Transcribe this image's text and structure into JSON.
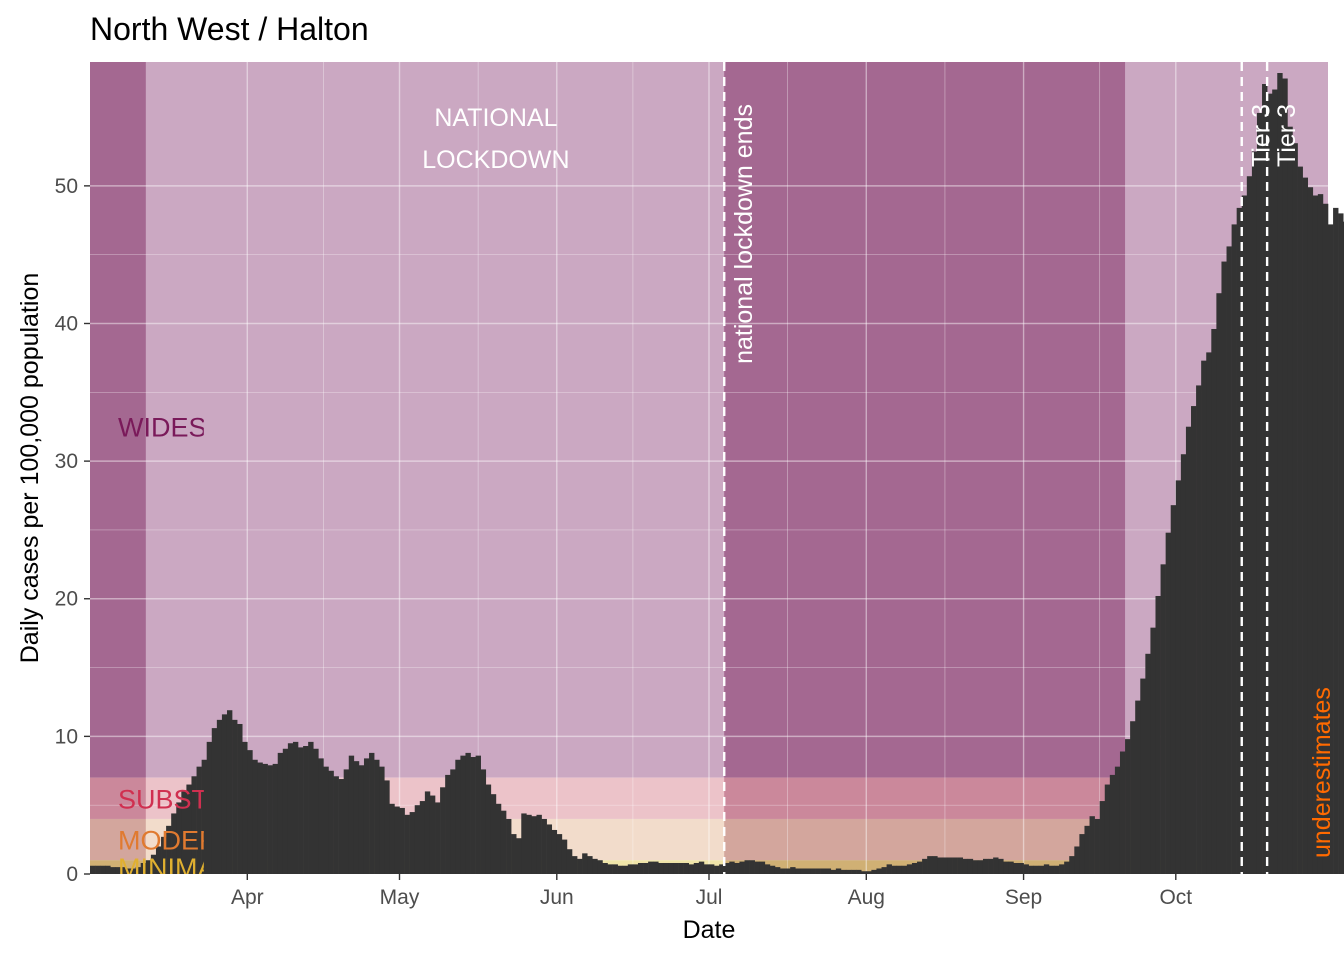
{
  "chart_data": {
    "type": "bar",
    "title": "North West / Halton",
    "xlabel": "Date",
    "ylabel": "Daily cases per 100,000 population",
    "ylim": [
      0,
      59
    ],
    "yticks": [
      0,
      10,
      20,
      30,
      40,
      50
    ],
    "ytick_labels": [
      "0",
      "10",
      "20",
      "30",
      "40",
      "50"
    ],
    "xlim": [
      "2020-03-01",
      "2020-10-31"
    ],
    "x_ticks": [
      {
        "date": "2020-04-01",
        "label": "Apr"
      },
      {
        "date": "2020-05-01",
        "label": "May"
      },
      {
        "date": "2020-06-01",
        "label": "Jun"
      },
      {
        "date": "2020-07-01",
        "label": "Jul"
      },
      {
        "date": "2020-08-01",
        "label": "Aug"
      },
      {
        "date": "2020-09-01",
        "label": "Sep"
      },
      {
        "date": "2020-10-01",
        "label": "Oct"
      }
    ],
    "grid": true,
    "levels": [
      {
        "label": "WIDESPREAD",
        "from": 7,
        "to": 59,
        "color": "#b07aa1",
        "text_color": "#7a1a5a"
      },
      {
        "label": "SUBSTANTIAL",
        "from": 4,
        "to": 7,
        "color": "#e2a3ad",
        "text_color": "#d03050"
      },
      {
        "label": "MODERATE",
        "from": 1,
        "to": 4,
        "color": "#ecc9b0",
        "text_color": "#e07a30"
      },
      {
        "label": "MINIMAL",
        "from": 0,
        "to": 1,
        "color": "#e8d77c",
        "text_color": "#e0b030"
      }
    ],
    "periods": [
      {
        "from": "2020-03-01",
        "to": "2020-03-12",
        "kind": "unrestricted"
      },
      {
        "from": "2020-03-12",
        "to": "2020-07-04",
        "kind": "lockdown"
      },
      {
        "from": "2020-07-04",
        "to": "2020-09-21",
        "kind": "unrestricted"
      },
      {
        "from": "2020-09-21",
        "to": "2020-10-31",
        "kind": "restricted"
      }
    ],
    "period_fill": {
      "unrestricted": "#7a2a5a",
      "lockdown": "#ffffff",
      "restricted": "#ffffff"
    },
    "annotations": [
      {
        "lines": [
          "NATIONAL",
          "LOCKDOWN"
        ],
        "date": "2020-05-20",
        "y": 54.5
      },
      {
        "text": "national lockdown ends",
        "date": "2020-07-04",
        "vertical": true
      },
      {
        "text": "Tier 3",
        "date": "2020-10-14",
        "vertical": true
      },
      {
        "text": "Tier 3",
        "date": "2020-10-19",
        "vertical": true
      },
      {
        "text": "underestimates",
        "date": "2020-10-29",
        "vertical": true,
        "color": "#ff6a00"
      }
    ],
    "bar_color": "#333333",
    "series": [
      {
        "start_date": "2020-03-01",
        "values": [
          0.6,
          0.6,
          0.6,
          0.6,
          0.5,
          0.5,
          0.5,
          0.4,
          0.4,
          0.5,
          0.8,
          1.0,
          1.4,
          2.0,
          2.7,
          3.5,
          4.4,
          5.2,
          6.0,
          6.5,
          7.1,
          7.8,
          8.3,
          9.6,
          10.6,
          11.2,
          11.6,
          11.9,
          11.2,
          10.9,
          9.6,
          9.0,
          8.3,
          8.1,
          8.0,
          7.9,
          8.0,
          8.8,
          9.1,
          9.5,
          9.6,
          9.2,
          9.3,
          9.6,
          9.1,
          8.4,
          7.8,
          7.5,
          7.1,
          6.9,
          7.6,
          8.6,
          8.2,
          7.9,
          8.4,
          8.8,
          8.3,
          7.8,
          6.8,
          5.1,
          4.9,
          4.8,
          4.3,
          4.5,
          5.0,
          5.3,
          6.0,
          5.7,
          5.2,
          6.3,
          7.2,
          7.6,
          8.3,
          8.6,
          8.8,
          8.5,
          8.6,
          7.6,
          6.5,
          5.8,
          5.1,
          4.6,
          4.0,
          2.9,
          2.6,
          4.4,
          4.3,
          4.2,
          4.3,
          4.0,
          3.6,
          3.2,
          2.9,
          2.5,
          1.8,
          1.3,
          1.1,
          1.5,
          1.3,
          1.1,
          1.0,
          0.8,
          0.7,
          0.7,
          0.6,
          0.6,
          0.7,
          0.7,
          0.8,
          0.8,
          0.9,
          0.9,
          0.8,
          0.8,
          0.8,
          0.8,
          0.8,
          0.8,
          0.7,
          0.8,
          0.9,
          0.7,
          0.7,
          0.6,
          0.7,
          0.8,
          0.9,
          0.8,
          0.9,
          1.0,
          1.0,
          0.9,
          0.9,
          0.7,
          0.6,
          0.5,
          0.4,
          0.4,
          0.5,
          0.4,
          0.4,
          0.4,
          0.4,
          0.4,
          0.4,
          0.4,
          0.3,
          0.4,
          0.3,
          0.3,
          0.3,
          0.3,
          0.2,
          0.2,
          0.3,
          0.4,
          0.5,
          0.7,
          0.6,
          0.6,
          0.6,
          0.7,
          0.8,
          0.9,
          1.1,
          1.3,
          1.3,
          1.2,
          1.2,
          1.2,
          1.2,
          1.2,
          1.1,
          1.1,
          1.0,
          1.0,
          1.1,
          1.1,
          1.2,
          1.1,
          0.9,
          0.9,
          0.8,
          0.8,
          0.7,
          0.6,
          0.6,
          0.6,
          0.7,
          0.6,
          0.6,
          0.7,
          0.9,
          1.3,
          2.0,
          2.9,
          3.5,
          4.2,
          4.0,
          5.3,
          6.5,
          7.2,
          7.8,
          8.9,
          9.8,
          11.1,
          12.6,
          14.2,
          16.0,
          17.9,
          20.2,
          22.5,
          24.8,
          26.8,
          28.6,
          30.5,
          32.5,
          34.0,
          35.5,
          37.3,
          37.9,
          39.6,
          42.2,
          44.5,
          45.6,
          47.2,
          48.4,
          49.3,
          50.7,
          52.5,
          55.3,
          57.4,
          56.7,
          57.0,
          58.2,
          57.8,
          54.3,
          53.1,
          51.4,
          50.6,
          49.9,
          49.3,
          49.4,
          48.7,
          47.2,
          48.4,
          48.0,
          47.4,
          49.0,
          49.3,
          48.4,
          48.2,
          47.0,
          45.7,
          44.3,
          42.5,
          41.2,
          37.4,
          34.7,
          30.0
        ]
      }
    ]
  }
}
